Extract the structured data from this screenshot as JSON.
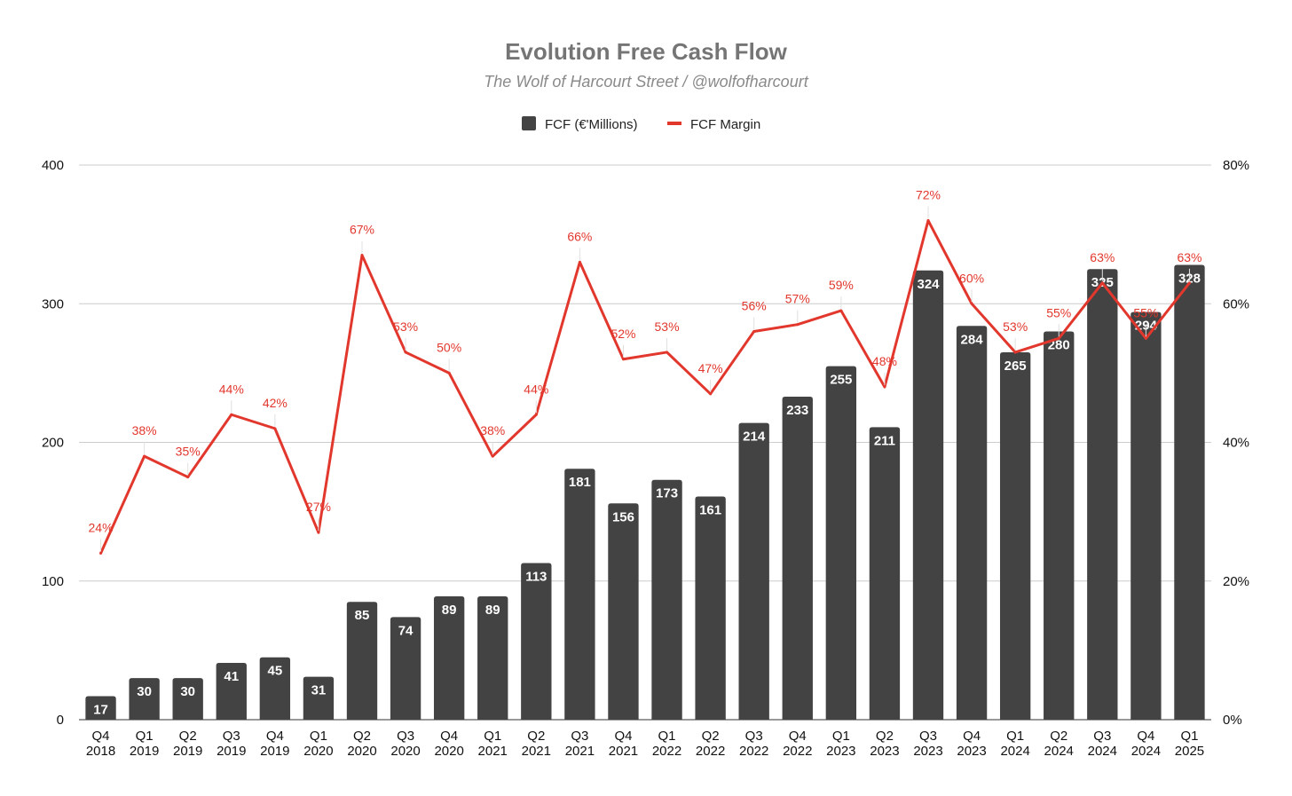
{
  "chart_data": {
    "type": "bar",
    "title": "Evolution Free Cash Flow",
    "subtitle": "The Wolf of Harcourt Street / @wolfofharcourt",
    "categories": [
      [
        "Q4",
        "2018"
      ],
      [
        "Q1",
        "2019"
      ],
      [
        "Q2",
        "2019"
      ],
      [
        "Q3",
        "2019"
      ],
      [
        "Q4",
        "2019"
      ],
      [
        "Q1",
        "2020"
      ],
      [
        "Q2",
        "2020"
      ],
      [
        "Q3",
        "2020"
      ],
      [
        "Q4",
        "2020"
      ],
      [
        "Q1",
        "2021"
      ],
      [
        "Q2",
        "2021"
      ],
      [
        "Q3",
        "2021"
      ],
      [
        "Q4",
        "2021"
      ],
      [
        "Q1",
        "2022"
      ],
      [
        "Q2",
        "2022"
      ],
      [
        "Q3",
        "2022"
      ],
      [
        "Q4",
        "2022"
      ],
      [
        "Q1",
        "2023"
      ],
      [
        "Q2",
        "2023"
      ],
      [
        "Q3",
        "2023"
      ],
      [
        "Q4",
        "2023"
      ],
      [
        "Q1",
        "2024"
      ],
      [
        "Q2",
        "2024"
      ],
      [
        "Q3",
        "2024"
      ],
      [
        "Q4",
        "2024"
      ],
      [
        "Q1",
        "2025"
      ]
    ],
    "series": [
      {
        "name": "FCF (€'Millions)",
        "type": "bar",
        "axis": "left",
        "color": "#434343",
        "values": [
          17,
          30,
          30,
          41,
          45,
          31,
          85,
          74,
          89,
          89,
          113,
          181,
          156,
          173,
          161,
          214,
          233,
          255,
          211,
          324,
          284,
          265,
          280,
          325,
          294,
          328
        ]
      },
      {
        "name": "FCF Margin",
        "type": "line",
        "axis": "right",
        "color": "#e2372d",
        "values": [
          24,
          38,
          35,
          44,
          42,
          27,
          67,
          53,
          50,
          38,
          44,
          66,
          52,
          53,
          47,
          56,
          57,
          59,
          48,
          72,
          60,
          53,
          55,
          63,
          55,
          63
        ],
        "labels": [
          "24%",
          "38%",
          "35%",
          "44%",
          "42%",
          "27%",
          "67%",
          "53%",
          "50%",
          "38%",
          "44%",
          "66%",
          "52%",
          "53%",
          "47%",
          "56%",
          "57%",
          "59%",
          "48%",
          "72%",
          "60%",
          "53%",
          "55%",
          "63%",
          "55%",
          "63%"
        ]
      }
    ],
    "y_left": {
      "ylim": [
        0,
        400
      ],
      "ticks": [
        "0",
        "100",
        "200",
        "300",
        "400"
      ],
      "tick_values": [
        0,
        100,
        200,
        300,
        400
      ]
    },
    "y_right": {
      "ylim": [
        0,
        80
      ],
      "ticks": [
        "0%",
        "20%",
        "40%",
        "60%",
        "80%"
      ],
      "tick_values": [
        0,
        20,
        40,
        60,
        80
      ]
    },
    "grid": true,
    "legend_position": "top"
  }
}
